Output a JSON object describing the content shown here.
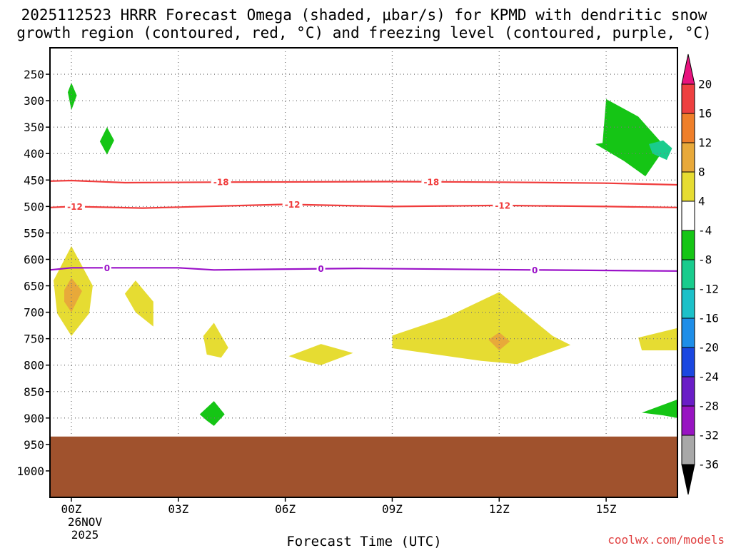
{
  "chart_data": {
    "type": "contour",
    "title_line1": "2025112523 HRRR Forecast Omega (shaded, μbar/s) for KPMD with dendritic snow",
    "title_line2": "growth region (contoured, red, °C) and freezing level (contoured, purple, °C)",
    "xlabel": "Forecast Time (UTC)",
    "date_label_1": "26NOV",
    "date_label_2": "2025",
    "credit": "coolwx.com/models",
    "x_ticks": [
      {
        "hour": 0,
        "label": "00Z"
      },
      {
        "hour": 3,
        "label": "03Z"
      },
      {
        "hour": 6,
        "label": "06Z"
      },
      {
        "hour": 9,
        "label": "09Z"
      },
      {
        "hour": 12,
        "label": "12Z"
      },
      {
        "hour": 15,
        "label": "15Z"
      }
    ],
    "x_range_hours": [
      -0.6,
      17
    ],
    "y_levels_hpa": [
      250,
      300,
      350,
      400,
      450,
      500,
      550,
      600,
      650,
      700,
      750,
      800,
      850,
      900,
      950,
      1000
    ],
    "y_labels": [
      "250",
      "300",
      "350",
      "400",
      "450",
      "500",
      "550",
      "600",
      "650",
      "700",
      "750",
      "800",
      "850",
      "900",
      "950",
      "1000"
    ],
    "y_range_hpa": [
      200,
      1050
    ],
    "terrain_top_hpa": 935,
    "colorbar": {
      "labels": [
        "20",
        "16",
        "12",
        "8",
        "4",
        "-4",
        "-8",
        "-12",
        "-16",
        "-20",
        "-24",
        "-28",
        "-32",
        "-36"
      ],
      "colors": [
        "#e8137e",
        "#ee4040",
        "#ef7f2a",
        "#e8a93a",
        "#e6dc32",
        "#ffffff",
        "#15c515",
        "#19cc8d",
        "#1cc1c9",
        "#1e8ee8",
        "#1b47e0",
        "#6a1dc7",
        "#9814c2",
        "#a8a8a8",
        "#000000"
      ]
    },
    "colors": {
      "yellow": "#e6dc32",
      "orange": "#e8a93a",
      "green": "#15c515",
      "teal": "#19cc8d",
      "red_line": "#f03c3c",
      "purple_line": "#9a10c8",
      "terrain": "#a0522d"
    },
    "contours": [
      {
        "name": "isotherm-minus18",
        "level": -18,
        "label": "-18",
        "color": "red",
        "points": [
          [
            -0.6,
            452
          ],
          [
            0,
            451
          ],
          [
            1.5,
            455
          ],
          [
            4,
            454
          ],
          [
            9,
            453
          ],
          [
            12,
            454
          ],
          [
            15,
            456
          ],
          [
            17,
            459
          ]
        ],
        "label_hours": [
          4.2,
          10.1
        ]
      },
      {
        "name": "isotherm-minus12",
        "level": -12,
        "label": "-12",
        "color": "red",
        "points": [
          [
            -0.6,
            502
          ],
          [
            0,
            500
          ],
          [
            2,
            503
          ],
          [
            6,
            496
          ],
          [
            9,
            500
          ],
          [
            12,
            498
          ],
          [
            15,
            500
          ],
          [
            17,
            502
          ]
        ],
        "label_hours": [
          0.1,
          6.2,
          12.1
        ]
      },
      {
        "name": "freezing-level",
        "level": 0,
        "label": "0",
        "color": "purple",
        "points": [
          [
            -0.6,
            620
          ],
          [
            0,
            616
          ],
          [
            3,
            616
          ],
          [
            4,
            620
          ],
          [
            8,
            617
          ],
          [
            13,
            620
          ],
          [
            17,
            622
          ]
        ],
        "label_hours": [
          1.0,
          7.0,
          13.0
        ]
      }
    ],
    "omega_regions": [
      {
        "name": "green-300-00z",
        "value": -6,
        "color": "green",
        "points": [
          [
            -0.1,
            284
          ],
          [
            0,
            266
          ],
          [
            0.15,
            290
          ],
          [
            0,
            318
          ]
        ]
      },
      {
        "name": "green-380-01z",
        "value": -6,
        "color": "green",
        "points": [
          [
            0.8,
            377
          ],
          [
            1.0,
            350
          ],
          [
            1.2,
            375
          ],
          [
            1.0,
            402
          ]
        ]
      },
      {
        "name": "green-350-15z",
        "value": -6,
        "color": "green",
        "points": [
          [
            14.9,
            380
          ],
          [
            15.0,
            297
          ],
          [
            15.9,
            330
          ],
          [
            16.6,
            383
          ],
          [
            16.5,
            404
          ],
          [
            16.1,
            443
          ],
          [
            15.5,
            414
          ],
          [
            14.7,
            382
          ]
        ]
      },
      {
        "name": "teal-390-16z",
        "value": -10,
        "color": "teal",
        "points": [
          [
            16.2,
            382
          ],
          [
            16.6,
            375
          ],
          [
            16.85,
            390
          ],
          [
            16.7,
            412
          ],
          [
            16.3,
            400
          ]
        ]
      },
      {
        "name": "yellow-650-00z",
        "value": 6,
        "color": "yellow",
        "points": [
          [
            -0.5,
            640
          ],
          [
            0,
            575
          ],
          [
            0.6,
            650
          ],
          [
            0.5,
            702
          ],
          [
            0,
            745
          ],
          [
            -0.4,
            702
          ]
        ]
      },
      {
        "name": "orange-660-00z",
        "value": 9,
        "color": "orange",
        "points": [
          [
            -0.2,
            658
          ],
          [
            0,
            635
          ],
          [
            0.3,
            660
          ],
          [
            0,
            700
          ],
          [
            -0.2,
            680
          ]
        ]
      },
      {
        "name": "yellow-680-02z",
        "value": 6,
        "color": "yellow",
        "points": [
          [
            1.5,
            665
          ],
          [
            1.8,
            640
          ],
          [
            2.3,
            680
          ],
          [
            2.3,
            727
          ],
          [
            1.8,
            700
          ]
        ]
      },
      {
        "name": "yellow-750-04z",
        "value": 6,
        "color": "yellow",
        "points": [
          [
            3.7,
            745
          ],
          [
            4.0,
            720
          ],
          [
            4.4,
            767
          ],
          [
            4.2,
            786
          ],
          [
            3.8,
            780
          ]
        ]
      },
      {
        "name": "yellow-780-07z",
        "value": 6,
        "color": "yellow",
        "points": [
          [
            6.1,
            783
          ],
          [
            7.0,
            760
          ],
          [
            7.9,
            777
          ],
          [
            7.0,
            800
          ],
          [
            6.4,
            790
          ]
        ]
      },
      {
        "name": "yellow-740-11z",
        "value": 6,
        "color": "yellow",
        "points": [
          [
            9.0,
            744
          ],
          [
            10.5,
            710
          ],
          [
            12.0,
            662
          ],
          [
            13.5,
            745
          ],
          [
            14.0,
            762
          ],
          [
            12.5,
            798
          ],
          [
            11.5,
            792
          ],
          [
            9.0,
            768
          ]
        ]
      },
      {
        "name": "orange-750-12z",
        "value": 9,
        "color": "orange",
        "points": [
          [
            11.7,
            752
          ],
          [
            12.0,
            738
          ],
          [
            12.3,
            755
          ],
          [
            12.0,
            772
          ]
        ]
      },
      {
        "name": "yellow-750-16z",
        "value": 6,
        "color": "yellow",
        "points": [
          [
            15.9,
            748
          ],
          [
            17.0,
            730
          ],
          [
            17.0,
            772
          ],
          [
            16.0,
            772
          ]
        ]
      },
      {
        "name": "green-895-04z",
        "value": -6,
        "color": "green",
        "points": [
          [
            3.6,
            893
          ],
          [
            4.0,
            868
          ],
          [
            4.3,
            893
          ],
          [
            4.0,
            915
          ],
          [
            3.8,
            905
          ]
        ]
      },
      {
        "name": "green-890-16z",
        "value": -6,
        "color": "green",
        "points": [
          [
            16.0,
            890
          ],
          [
            17.0,
            865
          ],
          [
            17.0,
            900
          ],
          [
            16.6,
            895
          ]
        ]
      }
    ]
  }
}
